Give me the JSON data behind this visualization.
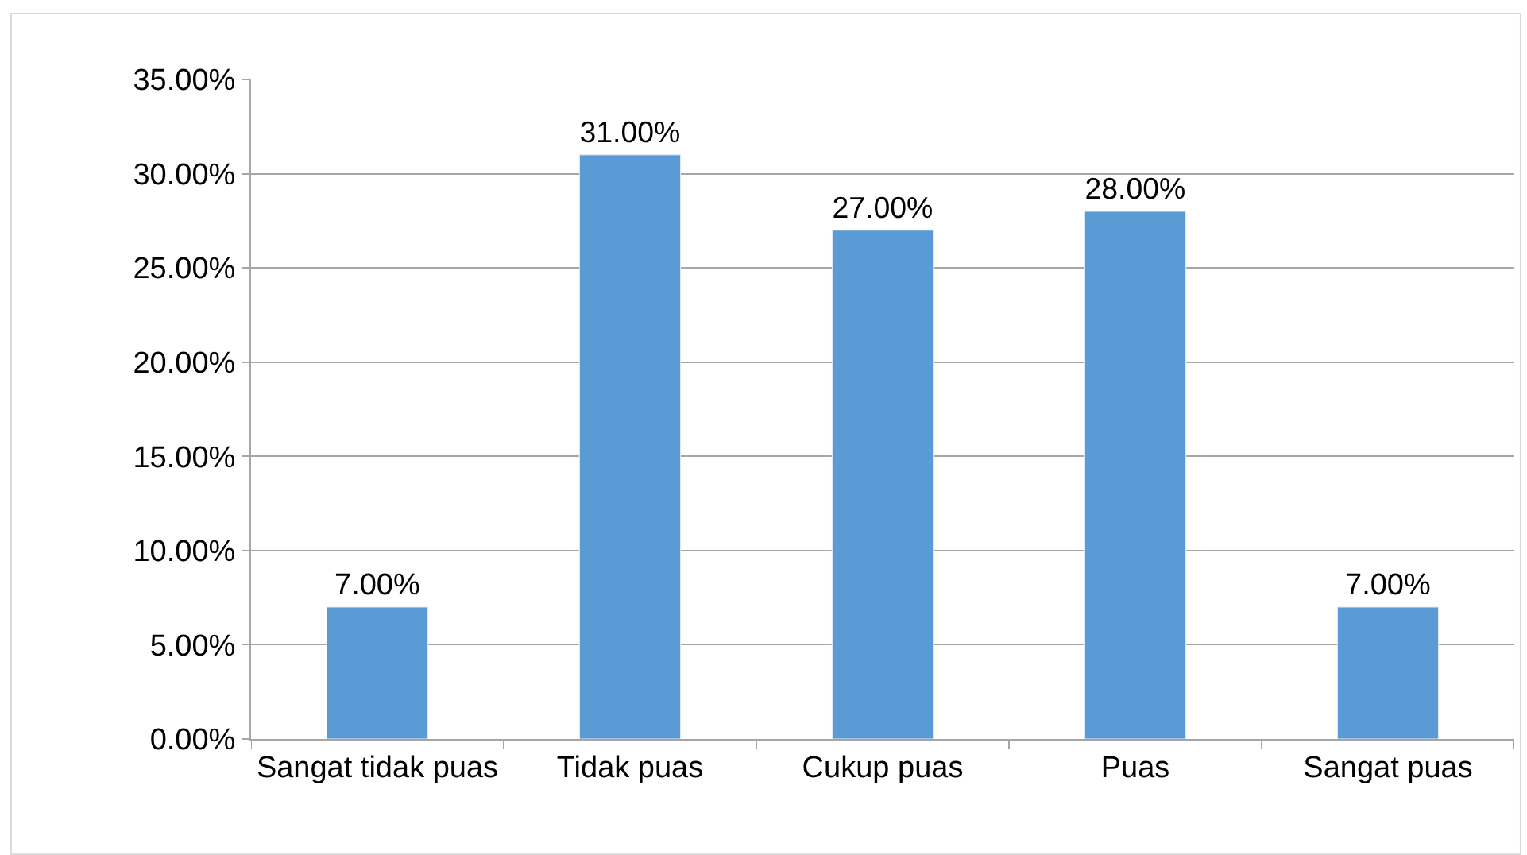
{
  "chart_data": {
    "type": "bar",
    "categories": [
      "Sangat tidak puas",
      "Tidak puas",
      "Cukup puas",
      "Puas",
      "Sangat puas"
    ],
    "values": [
      7,
      31,
      27,
      28,
      7
    ],
    "value_labels": [
      "7.00%",
      "31.00%",
      "27.00%",
      "28.00%",
      "7.00%"
    ],
    "color": "#5b9bd5",
    "ylim": [
      0,
      35
    ],
    "yticks": [
      {
        "value": 0,
        "label": "0.00%"
      },
      {
        "value": 5,
        "label": "5.00%"
      },
      {
        "value": 10,
        "label": "10.00%"
      },
      {
        "value": 15,
        "label": "15.00%"
      },
      {
        "value": 20,
        "label": "20.00%"
      },
      {
        "value": 25,
        "label": "25.00%"
      },
      {
        "value": 30,
        "label": "30.00%"
      },
      {
        "value": 35,
        "label": "35.00%"
      }
    ],
    "grid": "y"
  }
}
